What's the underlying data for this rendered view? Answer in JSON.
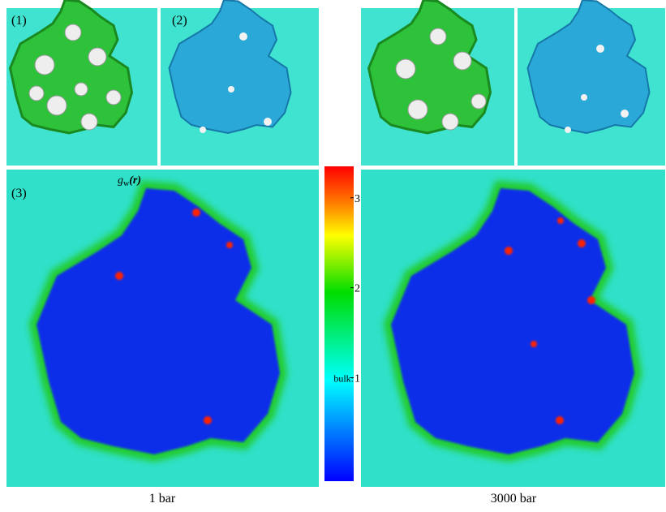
{
  "panel_labels": [
    "(1)",
    "(2)",
    "(3)"
  ],
  "colorbar": {
    "symbol": "g",
    "subscript": "w",
    "argument": "(r)",
    "lim": [
      -0.15,
      3.35
    ],
    "ticks": [
      1,
      2,
      3
    ],
    "bulk_label": "bulk:"
  },
  "captions": [
    "1 bar",
    "3000 bar"
  ]
}
